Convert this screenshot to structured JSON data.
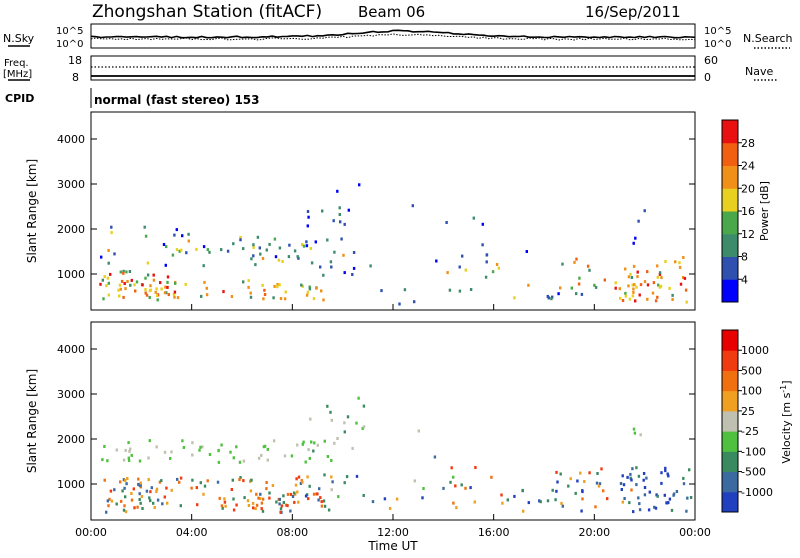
{
  "header": {
    "title": "Zhongshan Station (fitACF)",
    "beam": "Beam 06",
    "date": "16/Sep/2011"
  },
  "panels": {
    "sky": {
      "left_label": "N.Sky",
      "left_ticks": [
        "10^5",
        "10^0"
      ],
      "right_ticks": [
        "10^5",
        "10^0"
      ],
      "right_label": "N.Search"
    },
    "freq": {
      "left_label_1": "Freq.",
      "left_label_2": "[MHz]",
      "left_ticks": [
        "18",
        "8"
      ],
      "right_ticks": [
        "60",
        "0"
      ],
      "right_label": "Nave"
    },
    "cpid": {
      "label": "CPID",
      "text": "normal (fast stereo) 153"
    }
  },
  "chart_data": [
    {
      "type": "heatmap",
      "quantity": "power",
      "ylabel": "Slant Range [km]",
      "yticks": [
        "1000",
        "2000",
        "3000",
        "4000"
      ],
      "ylim": [
        200,
        4600
      ],
      "xticks": [
        "00:00",
        "04:00",
        "08:00",
        "12:00",
        "16:00",
        "20:00",
        "00:00"
      ],
      "xlim_hours": [
        0,
        24
      ],
      "colorbar": {
        "label": "Power [dB]",
        "ticks": [
          "4",
          "8",
          "12",
          "16",
          "20",
          "24",
          "28"
        ],
        "colors": [
          "#0000ff",
          "#3050b0",
          "#3c8c6c",
          "#4aa84a",
          "#e8d020",
          "#f09018",
          "#f06010",
          "#e81010"
        ]
      }
    },
    {
      "type": "heatmap",
      "quantity": "velocity",
      "ylabel": "Slant Range [km]",
      "yticks": [
        "1000",
        "2000",
        "3000",
        "4000"
      ],
      "ylim": [
        200,
        4600
      ],
      "xticks": [
        "00:00",
        "04:00",
        "08:00",
        "12:00",
        "16:00",
        "20:00",
        "00:00"
      ],
      "xlabel": "Time UT",
      "colorbar": {
        "label": "Velocity [m s",
        "label_sup": "-1",
        "label_end": "]",
        "ticks": [
          "1000",
          "500",
          "100",
          "25",
          "-25",
          "-100",
          "-500",
          "-1000"
        ],
        "colors": [
          "#2040c0",
          "#3a6aa0",
          "#3a8a60",
          "#50c040",
          "#c0c0b0",
          "#f0a020",
          "#f07010",
          "#f03a10",
          "#e80000"
        ]
      }
    }
  ]
}
